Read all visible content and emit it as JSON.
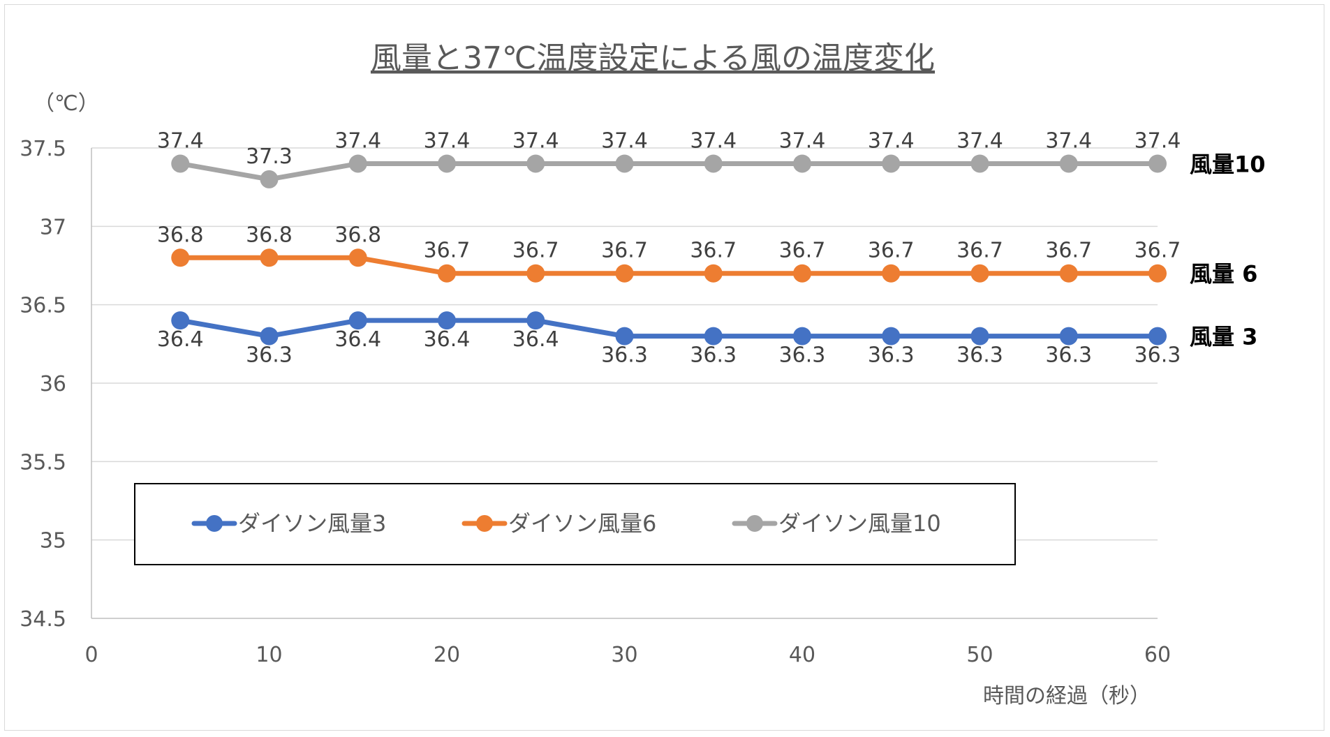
{
  "chart_data": {
    "type": "line",
    "title": "風量と37℃温度設定による風の温度変化",
    "ylabel": "（℃）",
    "xlabel": "時間の経過（秒）",
    "ylim": [
      34.5,
      37.5
    ],
    "xlim": [
      0,
      60
    ],
    "yticks": [
      "37.5",
      "37",
      "36.5",
      "36",
      "35.5",
      "35",
      "34.5"
    ],
    "ytick_values": [
      37.5,
      37,
      36.5,
      36,
      35.5,
      35,
      34.5
    ],
    "xticks": [
      "0",
      "10",
      "20",
      "30",
      "40",
      "50",
      "60"
    ],
    "xtick_values": [
      0,
      10,
      20,
      30,
      40,
      50,
      60
    ],
    "grid": true,
    "legend_position": "inside-bottom",
    "x": [
      5,
      10,
      15,
      20,
      25,
      30,
      35,
      40,
      45,
      50,
      55,
      60
    ],
    "series": [
      {
        "name": "ダイソン風量3",
        "end_label": "風量 3",
        "color": "#4472C4",
        "label_position": "below",
        "values": [
          36.4,
          36.3,
          36.4,
          36.4,
          36.4,
          36.3,
          36.3,
          36.3,
          36.3,
          36.3,
          36.3,
          36.3
        ]
      },
      {
        "name": "ダイソン風量6",
        "end_label": "風量 6",
        "color": "#ED7D31",
        "label_position": "above",
        "values": [
          36.8,
          36.8,
          36.8,
          36.7,
          36.7,
          36.7,
          36.7,
          36.7,
          36.7,
          36.7,
          36.7,
          36.7
        ]
      },
      {
        "name": "ダイソン風量10",
        "end_label": "風量10",
        "color": "#A5A5A5",
        "label_position": "above",
        "values": [
          37.4,
          37.3,
          37.4,
          37.4,
          37.4,
          37.4,
          37.4,
          37.4,
          37.4,
          37.4,
          37.4,
          37.4
        ]
      }
    ]
  }
}
